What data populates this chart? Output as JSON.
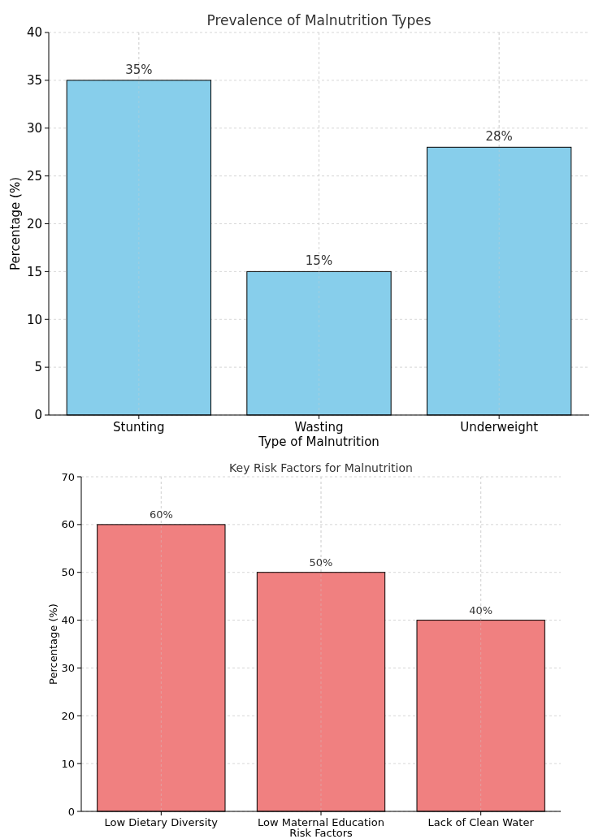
{
  "chart_data": [
    {
      "type": "bar",
      "title": "Prevalence of Malnutrition Types",
      "xlabel": "Type of Malnutrition",
      "ylabel": "Percentage (%)",
      "categories": [
        "Stunting",
        "Wasting",
        "Underweight"
      ],
      "values": [
        35,
        15,
        28
      ],
      "value_labels": [
        "35%",
        "15%",
        "28%"
      ],
      "color": "#87ceeb",
      "ylim": [
        0,
        40
      ],
      "yticks": [
        0,
        5,
        10,
        15,
        20,
        25,
        30,
        35,
        40
      ],
      "grid": true
    },
    {
      "type": "bar",
      "title": "Key Risk Factors for Malnutrition",
      "xlabel": "Risk Factors",
      "ylabel": "Percentage (%)",
      "categories": [
        "Low Dietary Diversity",
        "Low Maternal Education",
        "Lack of Clean Water"
      ],
      "values": [
        60,
        50,
        40
      ],
      "value_labels": [
        "60%",
        "50%",
        "40%"
      ],
      "color": "#f08080",
      "ylim": [
        0,
        70
      ],
      "yticks": [
        0,
        10,
        20,
        30,
        40,
        50,
        60,
        70
      ],
      "grid": true
    }
  ]
}
